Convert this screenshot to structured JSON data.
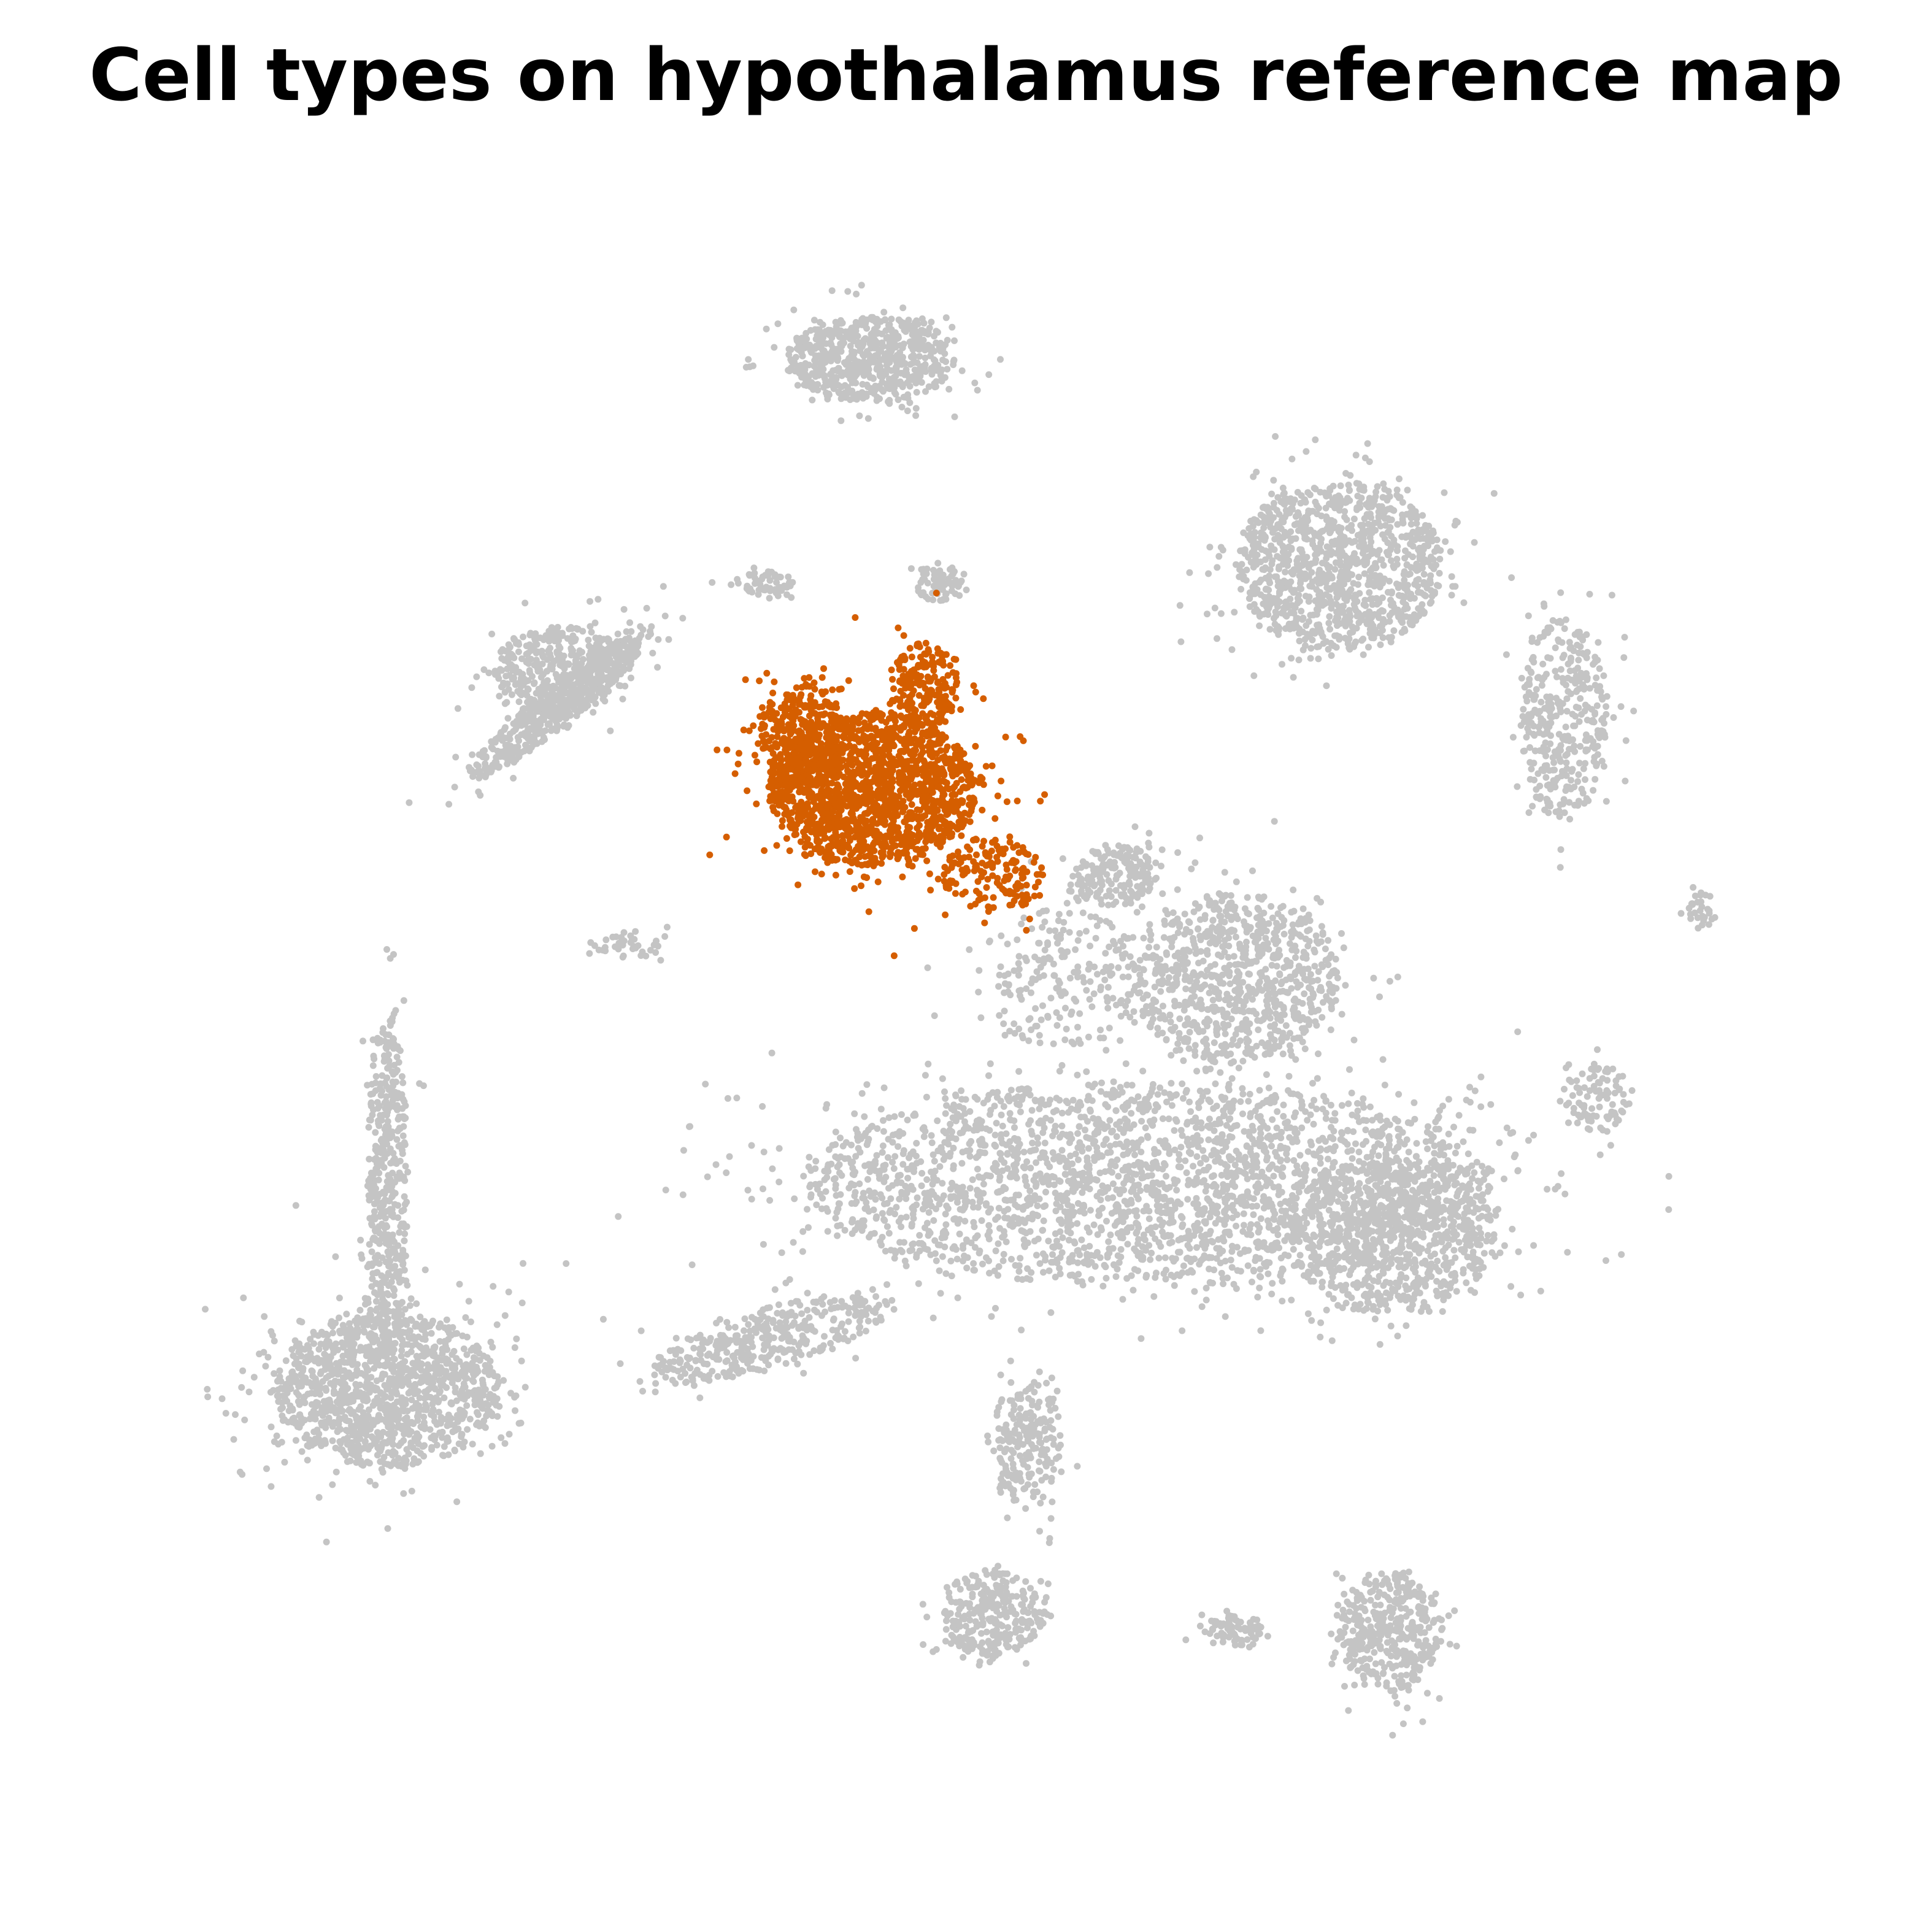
{
  "chart_data": {
    "type": "scatter",
    "title": "Cell types on hypothalamus reference map",
    "xlabel": "",
    "ylabel": "",
    "axes_visible": false,
    "grid": false,
    "legend": "none",
    "background_color": "#c4c4c4",
    "highlight_color": "#d55e00",
    "xlim": [
      0,
      100
    ],
    "ylim": [
      0,
      100
    ],
    "series": [
      {
        "color": "#c4c4c4",
        "role": "background",
        "clusters": [
          {
            "cx": 16,
            "cy": 28,
            "rx": 6.5,
            "ry": 4.5,
            "n": 1300
          },
          {
            "cx": 16,
            "cy": 40,
            "rx": 1.2,
            "ry": 10,
            "n": 450
          },
          {
            "cx": 26,
            "cy": 68,
            "rx": 7,
            "ry": 1.2,
            "rot": 40,
            "n": 500
          },
          {
            "cx": 44,
            "cy": 88,
            "rx": 5,
            "ry": 2.5,
            "n": 650
          },
          {
            "cx": 26,
            "cy": 70,
            "rx": 4,
            "ry": 2.5,
            "n": 400
          },
          {
            "cx": 38,
            "cy": 75,
            "rx": 1.5,
            "ry": 0.8,
            "n": 60
          },
          {
            "cx": 48,
            "cy": 75,
            "rx": 1.5,
            "ry": 1.2,
            "n": 70
          },
          {
            "cx": 71,
            "cy": 76,
            "rx": 6,
            "ry": 5,
            "n": 1100
          },
          {
            "cx": 84,
            "cy": 67,
            "rx": 2.5,
            "ry": 6,
            "n": 380
          },
          {
            "cx": 58,
            "cy": 58,
            "rx": 2.5,
            "ry": 1.8,
            "n": 180
          },
          {
            "cx": 65,
            "cy": 52,
            "rx": 6,
            "ry": 5,
            "n": 850
          },
          {
            "cx": 60,
            "cy": 40,
            "rx": 20,
            "ry": 6,
            "n": 2600
          },
          {
            "cx": 74,
            "cy": 37,
            "rx": 6,
            "ry": 4.5,
            "n": 800
          },
          {
            "cx": 38,
            "cy": 31,
            "rx": 7,
            "ry": 1.8,
            "rot": 15,
            "n": 380
          },
          {
            "cx": 53,
            "cy": 25,
            "rx": 2,
            "ry": 4,
            "n": 220
          },
          {
            "cx": 51,
            "cy": 15,
            "rx": 3,
            "ry": 2.5,
            "n": 300
          },
          {
            "cx": 74,
            "cy": 14,
            "rx": 3,
            "ry": 3.5,
            "n": 420
          },
          {
            "cx": 65,
            "cy": 14,
            "rx": 2,
            "ry": 1,
            "n": 80
          },
          {
            "cx": 86,
            "cy": 45,
            "rx": 2,
            "ry": 2,
            "n": 90
          },
          {
            "cx": 92,
            "cy": 56,
            "rx": 0.8,
            "ry": 1.2,
            "n": 30
          },
          {
            "cx": 30,
            "cy": 54,
            "rx": 2.5,
            "ry": 0.8,
            "n": 40
          },
          {
            "cx": 55,
            "cy": 52,
            "rx": 5,
            "ry": 4,
            "n": 220
          }
        ]
      },
      {
        "color": "#d55e00",
        "role": "highlighted",
        "clusters": [
          {
            "cx": 44,
            "cy": 63,
            "rx": 6,
            "ry": 4.5,
            "n": 1600
          },
          {
            "cx": 40,
            "cy": 66,
            "rx": 2.5,
            "ry": 3,
            "n": 350
          },
          {
            "cx": 47,
            "cy": 69,
            "rx": 2,
            "ry": 2.5,
            "n": 220
          },
          {
            "cx": 51,
            "cy": 58,
            "rx": 3,
            "ry": 2.2,
            "n": 160
          }
        ]
      }
    ]
  }
}
